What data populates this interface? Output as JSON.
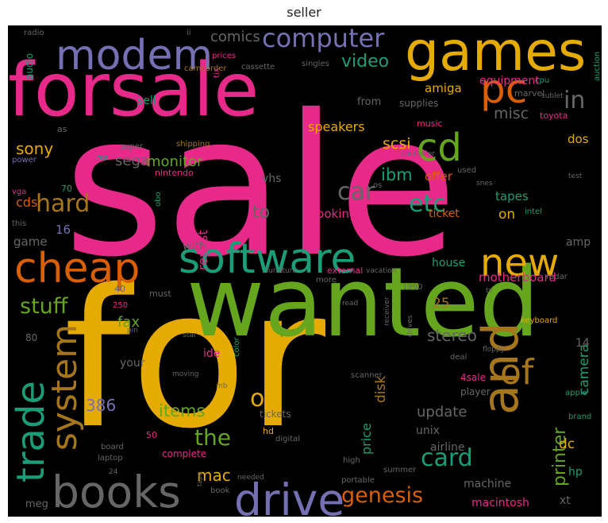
{
  "title": "seller",
  "palette": {
    "pink": "#e7298a",
    "orange": "#d95f02",
    "green": "#66a61e",
    "gold": "#e6ab02",
    "teal": "#1b9e77",
    "purple": "#7570b3",
    "brown": "#a6761d",
    "gray": "#666666",
    "background": "#000000"
  },
  "words": [
    {
      "text": "sale",
      "color": "pink"
    },
    {
      "text": "for",
      "color": "gold"
    },
    {
      "text": "wanted",
      "color": "green"
    },
    {
      "text": "forsale",
      "color": "pink"
    },
    {
      "text": "games",
      "color": "gold"
    },
    {
      "text": "modem",
      "color": "purple"
    },
    {
      "text": "software",
      "color": "teal"
    },
    {
      "text": "cheap",
      "color": "orange"
    },
    {
      "text": "and",
      "color": "brown"
    },
    {
      "text": "books",
      "color": "gray"
    },
    {
      "text": "drive",
      "color": "purple"
    },
    {
      "text": "computer",
      "color": "purple"
    },
    {
      "text": "pc",
      "color": "orange"
    },
    {
      "text": "cd",
      "color": "green"
    },
    {
      "text": "new",
      "color": "gold"
    },
    {
      "text": "trade",
      "color": "teal"
    },
    {
      "text": "system",
      "color": "brown"
    },
    {
      "text": "of",
      "color": "brown"
    },
    {
      "text": "hard",
      "color": "brown"
    },
    {
      "text": "car",
      "color": "gray"
    },
    {
      "text": "in",
      "color": "gray"
    },
    {
      "text": "etc",
      "color": "teal"
    },
    {
      "text": "stuff",
      "color": "green"
    },
    {
      "text": "card",
      "color": "teal"
    },
    {
      "text": "or",
      "color": "gold"
    },
    {
      "text": "genesis",
      "color": "orange"
    },
    {
      "text": "the",
      "color": "green"
    },
    {
      "text": "video",
      "color": "teal"
    },
    {
      "text": "comics",
      "color": "gray"
    },
    {
      "text": "sony",
      "color": "gold"
    },
    {
      "text": "ibm",
      "color": "teal"
    },
    {
      "text": "monitor",
      "color": "green"
    },
    {
      "text": "to",
      "color": "gray"
    },
    {
      "text": "printer",
      "color": "green"
    },
    {
      "text": "items",
      "color": "green"
    },
    {
      "text": "mac",
      "color": "gold"
    },
    {
      "text": "camera",
      "color": "teal"
    },
    {
      "text": "386",
      "color": "purple"
    },
    {
      "text": "repost",
      "color": "pink"
    },
    {
      "text": "disk",
      "color": "brown"
    },
    {
      "text": "price",
      "color": "teal"
    },
    {
      "text": "update",
      "color": "gray"
    },
    {
      "text": "stereo",
      "color": "gray"
    },
    {
      "text": "fax",
      "color": "green"
    },
    {
      "text": "misc",
      "color": "gray"
    },
    {
      "text": "sega",
      "color": "gray"
    },
    {
      "text": "scsi",
      "color": "gold"
    },
    {
      "text": "amiga",
      "color": "gold"
    },
    {
      "text": "speakers",
      "color": "gold"
    },
    {
      "text": "sell",
      "color": "teal"
    },
    {
      "text": "equipment",
      "color": "pink"
    },
    {
      "text": "looking",
      "color": "pink"
    },
    {
      "text": "cds",
      "color": "orange"
    },
    {
      "text": "game",
      "color": "gray"
    },
    {
      "text": "16",
      "color": "purple"
    },
    {
      "text": "25",
      "color": "brown"
    },
    {
      "text": "motherboard",
      "color": "pink"
    },
    {
      "text": "offer",
      "color": "orange"
    },
    {
      "text": "tapes",
      "color": "teal"
    },
    {
      "text": "on",
      "color": "gold"
    },
    {
      "text": "ticket",
      "color": "orange"
    },
    {
      "text": "unix",
      "color": "gray"
    },
    {
      "text": "dc",
      "color": "gold"
    },
    {
      "text": "xt",
      "color": "gray"
    },
    {
      "text": "machine",
      "color": "gray"
    },
    {
      "text": "macintosh",
      "color": "pink"
    },
    {
      "text": "airline",
      "color": "gray"
    },
    {
      "text": "house",
      "color": "teal"
    },
    {
      "text": "with",
      "color": "gray"
    },
    {
      "text": "ide",
      "color": "pink"
    },
    {
      "text": "your",
      "color": "gray"
    },
    {
      "text": "dos",
      "color": "gold"
    },
    {
      "text": "amp",
      "color": "gray"
    },
    {
      "text": "14",
      "color": "gray"
    },
    {
      "text": "hp",
      "color": "teal"
    },
    {
      "text": "meg",
      "color": "gray"
    },
    {
      "text": "vhs",
      "color": "gray"
    },
    {
      "text": "from",
      "color": "gray"
    },
    {
      "text": "supplies",
      "color": "gray"
    },
    {
      "text": "audio",
      "color": "teal"
    },
    {
      "text": "80",
      "color": "gray"
    },
    {
      "text": "4sale",
      "color": "pink"
    },
    {
      "text": "player",
      "color": "gray"
    },
    {
      "text": "intel",
      "color": "teal"
    },
    {
      "text": "external",
      "color": "pink"
    },
    {
      "text": "furniture",
      "color": "gray"
    },
    {
      "text": "vacation",
      "color": "gray"
    },
    {
      "text": "more",
      "color": "gray"
    },
    {
      "text": "must",
      "color": "gray"
    },
    {
      "text": "music",
      "color": "pink"
    },
    {
      "text": "used",
      "color": "gray"
    },
    {
      "text": "super",
      "color": "gray"
    },
    {
      "text": "shipping",
      "color": "brown"
    },
    {
      "text": "nintendo",
      "color": "pink"
    },
    {
      "text": "marvel",
      "color": "gray"
    },
    {
      "text": "cpu",
      "color": "teal"
    },
    {
      "text": "toyota",
      "color": "pink"
    },
    {
      "text": "auction",
      "color": "teal"
    },
    {
      "text": "sublet",
      "color": "gray"
    },
    {
      "text": "radio",
      "color": "gray"
    },
    {
      "text": "prices",
      "color": "pink"
    },
    {
      "text": "cassette",
      "color": "gray"
    },
    {
      "text": "camcorder",
      "color": "brown"
    },
    {
      "text": "singles",
      "color": "gray"
    },
    {
      "text": "controller",
      "color": "gray"
    },
    {
      "text": "snes",
      "color": "gray"
    },
    {
      "text": "test",
      "color": "gray"
    },
    {
      "text": "os",
      "color": "gray"
    },
    {
      "text": "as",
      "color": "gray"
    },
    {
      "text": "power",
      "color": "purple"
    },
    {
      "text": "ms",
      "color": "teal"
    },
    {
      "text": "vga",
      "color": "pink"
    },
    {
      "text": "70",
      "color": "teal"
    },
    {
      "text": "this",
      "color": "gray"
    },
    {
      "text": "keyboard",
      "color": "gold"
    },
    {
      "text": "floppy",
      "color": "gray"
    },
    {
      "text": "drives",
      "color": "gray"
    },
    {
      "text": "receiver",
      "color": "gray"
    },
    {
      "text": "scanner",
      "color": "gray"
    },
    {
      "text": "deal",
      "color": "gray"
    },
    {
      "text": "read",
      "color": "gray"
    },
    {
      "text": "1990",
      "color": "gray"
    },
    {
      "text": "radar",
      "color": "gray"
    },
    {
      "text": "tv",
      "color": "gray"
    },
    {
      "text": "apple",
      "color": "teal"
    },
    {
      "text": "brand",
      "color": "teal"
    },
    {
      "text": "color",
      "color": "teal"
    },
    {
      "text": "tickets",
      "color": "gray"
    },
    {
      "text": "hd",
      "color": "gold"
    },
    {
      "text": "digital",
      "color": "gray"
    },
    {
      "text": "complete",
      "color": "pink"
    },
    {
      "text": "high",
      "color": "gray"
    },
    {
      "text": "portable",
      "color": "gray"
    },
    {
      "text": "summer",
      "color": "gray"
    },
    {
      "text": "needed",
      "color": "gray"
    },
    {
      "text": "book",
      "color": "gray"
    },
    {
      "text": "laptop",
      "color": "gray"
    },
    {
      "text": "board",
      "color": "gray"
    },
    {
      "text": "24",
      "color": "gray"
    },
    {
      "text": "50",
      "color": "pink"
    },
    {
      "text": "moving",
      "color": "gray"
    },
    {
      "text": "mb",
      "color": "gray"
    },
    {
      "text": "star",
      "color": "gray"
    },
    {
      "text": "pin",
      "color": "gray"
    },
    {
      "text": "250",
      "color": "pink"
    },
    {
      "text": "40",
      "color": "gray"
    },
    {
      "text": "obo",
      "color": "teal"
    },
    {
      "text": "tape",
      "color": "gray"
    },
    {
      "text": "ii",
      "color": "gray"
    },
    {
      "text": "tix",
      "color": "pink"
    }
  ]
}
